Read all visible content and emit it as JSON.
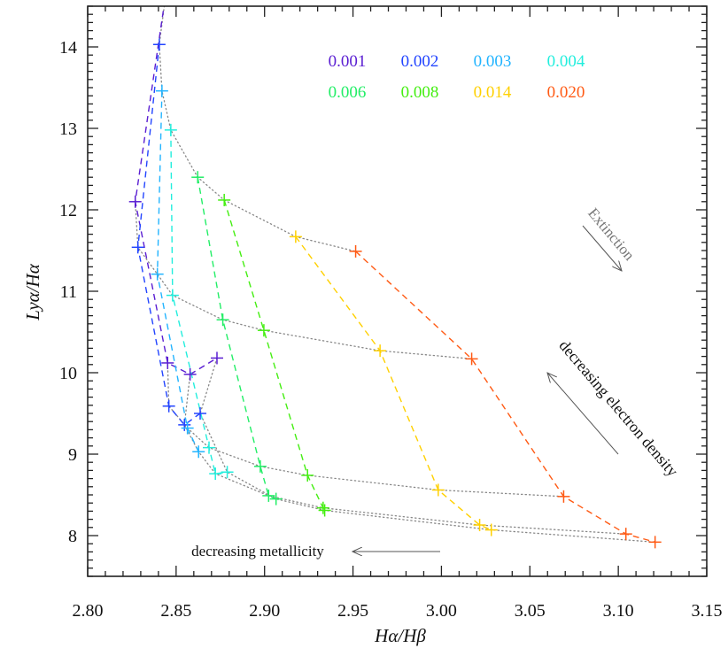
{
  "chart_data": {
    "type": "line",
    "xlabel": "Hα/Hβ",
    "ylabel": "Lyα/Hα",
    "xlim": [
      2.8,
      3.15
    ],
    "ylim": [
      7.5,
      14.5
    ],
    "xticks": [
      "2.80",
      "2.85",
      "2.90",
      "2.95",
      "3.00",
      "3.05",
      "3.10",
      "3.15"
    ],
    "yticks": [
      "8",
      "9",
      "10",
      "11",
      "12",
      "13",
      "14"
    ],
    "grid": false,
    "legend_placement": "top-center",
    "density_link_color": "#888888",
    "series": [
      {
        "name": "0.001",
        "color": "#5a1ed2",
        "points": [
          [
            2.8445,
            14.7
          ],
          [
            2.8269,
            12.1
          ],
          [
            2.8452,
            10.12
          ],
          [
            2.8579,
            9.98
          ],
          [
            2.8731,
            10.18
          ]
        ]
      },
      {
        "name": "0.002",
        "color": "#2244ff",
        "points": [
          [
            2.8405,
            14.03
          ],
          [
            2.8284,
            11.54
          ],
          [
            2.8459,
            9.59
          ],
          [
            2.8547,
            9.36
          ],
          [
            2.8636,
            9.5
          ]
        ]
      },
      {
        "name": "0.003",
        "color": "#22b4ff",
        "points": [
          [
            2.842,
            13.46
          ],
          [
            2.8394,
            11.21
          ],
          [
            2.8564,
            9.32
          ],
          [
            2.8627,
            9.03
          ],
          null
        ]
      },
      {
        "name": "0.004",
        "color": "#22eedd",
        "points": [
          [
            2.847,
            12.98
          ],
          [
            2.848,
            10.95
          ],
          [
            2.8686,
            9.08
          ],
          [
            2.8722,
            8.76
          ],
          [
            2.8789,
            8.78
          ]
        ]
      },
      {
        "name": "0.006",
        "color": "#22ee66",
        "points": [
          [
            2.8622,
            12.4
          ],
          [
            2.8764,
            10.65
          ],
          [
            2.8976,
            8.85
          ],
          [
            2.9023,
            8.49
          ],
          [
            2.9065,
            8.45
          ]
        ]
      },
      {
        "name": "0.008",
        "color": "#44ee11",
        "points": [
          [
            2.8772,
            12.12
          ],
          [
            2.8996,
            10.52
          ],
          [
            2.9243,
            8.74
          ],
          [
            2.9331,
            8.34
          ],
          [
            2.934,
            8.31
          ]
        ]
      },
      {
        "name": "0.014",
        "color": "#ffd000",
        "points": [
          [
            2.9176,
            11.67
          ],
          [
            2.9653,
            10.27
          ],
          [
            2.9982,
            8.56
          ],
          [
            3.0216,
            8.13
          ],
          [
            3.0282,
            8.07
          ]
        ]
      },
      {
        "name": "0.020",
        "color": "#ff5a14",
        "points": [
          [
            2.9515,
            11.49
          ],
          [
            3.0171,
            10.17
          ],
          [
            3.0691,
            8.48
          ],
          [
            3.1043,
            8.02
          ],
          [
            3.1208,
            7.92
          ]
        ]
      }
    ],
    "annotations": {
      "extinction": "Extinction",
      "density": "decreasing electron density",
      "metallicity": "decreasing metallicity"
    }
  }
}
